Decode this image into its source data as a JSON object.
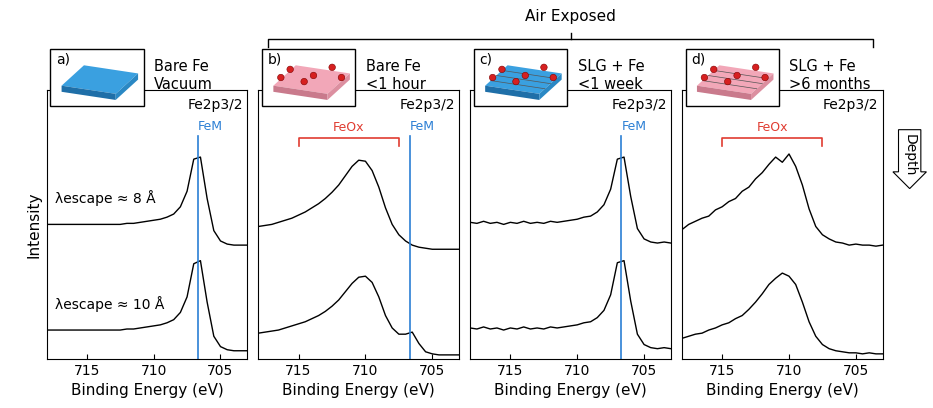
{
  "figure": {
    "supertitle": "Air Exposed",
    "side_label": "Depth"
  },
  "chart_data": [
    {
      "type": "line",
      "panel_label": "a)",
      "title": "Bare Fe\nVacuum",
      "header": "Fe2p3/2",
      "xlabel": "Binding Energy (eV)",
      "ylabel": "Intensity",
      "xlim": [
        718,
        703
      ],
      "xticks": [
        715,
        710,
        705
      ],
      "ylim": [
        0,
        2.6
      ],
      "yticks": [],
      "tick_labels": "x",
      "x": [
        718,
        717.5,
        717,
        716.5,
        716,
        715.5,
        715,
        714.5,
        714,
        713.5,
        713,
        712.5,
        712,
        711.5,
        711,
        710.5,
        710,
        709.5,
        709,
        708.5,
        708,
        707.5,
        707,
        706.5,
        706,
        705.5,
        705,
        704.5,
        704,
        703.5,
        703
      ],
      "series": [
        {
          "color": "#000000",
          "values": [
            1.3,
            1.3,
            1.3,
            1.3,
            1.3,
            1.3,
            1.3,
            1.3,
            1.3,
            1.3,
            1.3,
            1.3,
            1.31,
            1.31,
            1.32,
            1.33,
            1.34,
            1.35,
            1.37,
            1.4,
            1.47,
            1.62,
            1.93,
            1.95,
            1.55,
            1.24,
            1.14,
            1.11,
            1.1,
            1.1,
            1.1
          ]
        },
        {
          "color": "#000000",
          "values": [
            0.28,
            0.28,
            0.28,
            0.28,
            0.28,
            0.28,
            0.28,
            0.28,
            0.28,
            0.28,
            0.28,
            0.28,
            0.29,
            0.29,
            0.3,
            0.31,
            0.32,
            0.33,
            0.35,
            0.38,
            0.45,
            0.6,
            0.92,
            0.95,
            0.55,
            0.22,
            0.12,
            0.09,
            0.08,
            0.08,
            0.08
          ]
        }
      ],
      "annotations": [
        "λescape ≈ 8 Å",
        "λescape ≈ 10 Å"
      ],
      "markers": [
        {
          "label": "FeM",
          "x": 706.7,
          "color": "#2b7fd4"
        }
      ],
      "ranges": []
    },
    {
      "type": "line",
      "panel_label": "b)",
      "title": "Bare Fe\n<1 hour",
      "header": "Fe2p3/2",
      "xlabel": "Binding Energy (eV)",
      "xlim": [
        718,
        703
      ],
      "xticks": [
        715,
        710,
        705
      ],
      "ylim": [
        0,
        2.6
      ],
      "yticks": [],
      "tick_labels": "x",
      "x": [
        718,
        717.5,
        717,
        716.5,
        716,
        715.5,
        715,
        714.5,
        714,
        713.5,
        713,
        712.5,
        712,
        711.5,
        711,
        710.5,
        710,
        709.5,
        709,
        708.5,
        708,
        707.5,
        707,
        706.5,
        706,
        705.5,
        705,
        704.5,
        704,
        703.5,
        703
      ],
      "series": [
        {
          "color": "#000000",
          "values": [
            1.28,
            1.29,
            1.3,
            1.32,
            1.34,
            1.36,
            1.39,
            1.42,
            1.46,
            1.5,
            1.55,
            1.61,
            1.68,
            1.77,
            1.86,
            1.92,
            1.91,
            1.82,
            1.66,
            1.46,
            1.3,
            1.2,
            1.14,
            1.1,
            1.08,
            1.07,
            1.06,
            1.06,
            1.06,
            1.06,
            1.06
          ]
        },
        {
          "color": "#000000",
          "values": [
            0.25,
            0.26,
            0.27,
            0.28,
            0.3,
            0.32,
            0.34,
            0.36,
            0.39,
            0.42,
            0.46,
            0.51,
            0.57,
            0.65,
            0.73,
            0.79,
            0.8,
            0.74,
            0.6,
            0.42,
            0.3,
            0.24,
            0.24,
            0.26,
            0.15,
            0.07,
            0.05,
            0.04,
            0.04,
            0.04,
            0.04
          ]
        }
      ],
      "annotations": [],
      "markers": [
        {
          "label": "FeM",
          "x": 706.7,
          "color": "#2b7fd4"
        }
      ],
      "ranges": [
        {
          "label": "FeOx",
          "x": [
            715,
            707.5
          ],
          "color": "#e03c31"
        }
      ]
    },
    {
      "type": "line",
      "panel_label": "c)",
      "title": "SLG + Fe\n<1 week",
      "header": "Fe2p3/2",
      "xlabel": "Binding Energy (eV)",
      "xlim": [
        718,
        703
      ],
      "xticks": [
        715,
        710,
        705
      ],
      "ylim": [
        0,
        2.6
      ],
      "yticks": [],
      "tick_labels": "x",
      "x": [
        718,
        717.5,
        717,
        716.5,
        716,
        715.5,
        715,
        714.5,
        714,
        713.5,
        713,
        712.5,
        712,
        711.5,
        711,
        710.5,
        710,
        709.5,
        709,
        708.5,
        708,
        707.5,
        707,
        706.5,
        706,
        705.5,
        705,
        704.5,
        704,
        703.5,
        703
      ],
      "series": [
        {
          "color": "#000000",
          "values": [
            1.32,
            1.31,
            1.33,
            1.31,
            1.32,
            1.3,
            1.32,
            1.31,
            1.33,
            1.31,
            1.32,
            1.31,
            1.33,
            1.32,
            1.33,
            1.34,
            1.35,
            1.37,
            1.38,
            1.42,
            1.49,
            1.64,
            1.93,
            1.95,
            1.57,
            1.26,
            1.16,
            1.13,
            1.12,
            1.13,
            1.12
          ]
        },
        {
          "color": "#000000",
          "values": [
            0.3,
            0.29,
            0.31,
            0.29,
            0.3,
            0.28,
            0.3,
            0.29,
            0.31,
            0.29,
            0.3,
            0.29,
            0.31,
            0.3,
            0.31,
            0.32,
            0.33,
            0.35,
            0.36,
            0.4,
            0.47,
            0.62,
            0.93,
            0.95,
            0.56,
            0.24,
            0.14,
            0.11,
            0.1,
            0.11,
            0.1
          ]
        }
      ],
      "annotations": [],
      "markers": [
        {
          "label": "FeM",
          "x": 706.7,
          "color": "#2b7fd4"
        }
      ],
      "ranges": []
    },
    {
      "type": "line",
      "panel_label": "d)",
      "title": "SLG + Fe\n>6 months",
      "header": "Fe2p3/2",
      "xlabel": "Binding Energy (eV)",
      "xlim": [
        718,
        703
      ],
      "xticks": [
        715,
        710,
        705
      ],
      "ylim": [
        0,
        2.6
      ],
      "yticks": [],
      "tick_labels": "x",
      "x": [
        718,
        717.5,
        717,
        716.5,
        716,
        715.5,
        715,
        714.5,
        714,
        713.5,
        713,
        712.5,
        712,
        711.5,
        711,
        710.5,
        710,
        709.5,
        709,
        708.5,
        708,
        707.5,
        707,
        706.5,
        706,
        705.5,
        705,
        704.5,
        704,
        703.5,
        703
      ],
      "series": [
        {
          "color": "#000000",
          "values": [
            1.25,
            1.3,
            1.33,
            1.36,
            1.38,
            1.44,
            1.47,
            1.52,
            1.55,
            1.62,
            1.66,
            1.74,
            1.8,
            1.88,
            1.95,
            1.9,
            1.98,
            1.86,
            1.68,
            1.45,
            1.28,
            1.2,
            1.16,
            1.13,
            1.12,
            1.1,
            1.11,
            1.1,
            1.1,
            1.09,
            1.1
          ]
        },
        {
          "color": "#000000",
          "values": [
            0.2,
            0.22,
            0.24,
            0.25,
            0.28,
            0.3,
            0.33,
            0.35,
            0.39,
            0.42,
            0.48,
            0.55,
            0.63,
            0.72,
            0.78,
            0.83,
            0.8,
            0.72,
            0.55,
            0.36,
            0.22,
            0.14,
            0.1,
            0.08,
            0.07,
            0.06,
            0.06,
            0.05,
            0.06,
            0.05,
            0.05
          ]
        }
      ],
      "annotations": [],
      "markers": [],
      "ranges": [
        {
          "label": "FeOx",
          "x": [
            715,
            707.5
          ],
          "color": "#e03c31"
        }
      ]
    }
  ]
}
